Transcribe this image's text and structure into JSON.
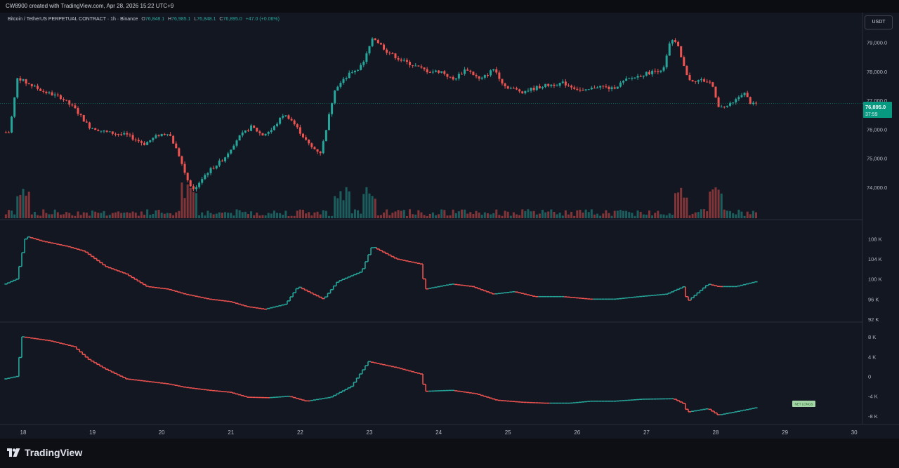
{
  "header": {
    "creator_line": "CW8900 created with TradingView.com, Apr 28, 2026 15:22 UTC+9"
  },
  "legend": {
    "symbol": "Bitcoin / TetherUS PERPETUAL CONTRACT · 1h · Binance",
    "o_label": "O",
    "o_value": "76,848.1",
    "h_label": "H",
    "h_value": "76,985.1",
    "l_label": "L",
    "l_value": "76,848.1",
    "c_label": "C",
    "c_value": "76,895.0",
    "change": "+47.0 (+0.06%)"
  },
  "currency_button": "USDT",
  "last_price": {
    "price": "76,895.0",
    "countdown": "37:59"
  },
  "oi_tag": "NET LONGS",
  "footer": {
    "brand": "TradingView"
  },
  "colors": {
    "up": "#26a69a",
    "down": "#ef5350",
    "background": "#131722",
    "accent": "#089981"
  },
  "chart_data": [
    {
      "type": "candlestick",
      "title": "Bitcoin / TetherUS PERPETUAL CONTRACT · 1h · Binance",
      "x_ticks": [
        "18",
        "19",
        "20",
        "21",
        "22",
        "23",
        "24",
        "25",
        "26",
        "27",
        "28",
        "29",
        "30"
      ],
      "y_ticks": [
        "79,000.0",
        "78,000.0",
        "77,000.0",
        "76,000.0",
        "75,000.0",
        "74,000.0"
      ],
      "ylim": [
        73200,
        79500
      ],
      "last": 76895.0,
      "closes_anchor": [
        [
          17.8,
          75900
        ],
        [
          17.92,
          77800
        ],
        [
          18.05,
          77600
        ],
        [
          18.3,
          77300
        ],
        [
          18.55,
          77100
        ],
        [
          18.75,
          76700
        ],
        [
          18.95,
          76100
        ],
        [
          19.2,
          75900
        ],
        [
          19.5,
          75800
        ],
        [
          19.75,
          75500
        ],
        [
          19.95,
          75800
        ],
        [
          20.1,
          75900
        ],
        [
          20.25,
          75100
        ],
        [
          20.35,
          74400
        ],
        [
          20.45,
          73900
        ],
        [
          20.65,
          74500
        ],
        [
          20.9,
          75000
        ],
        [
          21.1,
          75700
        ],
        [
          21.3,
          76100
        ],
        [
          21.45,
          75800
        ],
        [
          21.6,
          76000
        ],
        [
          21.75,
          76500
        ],
        [
          21.85,
          76400
        ],
        [
          22.0,
          75900
        ],
        [
          22.15,
          75400
        ],
        [
          22.3,
          75200
        ],
        [
          22.4,
          76300
        ],
        [
          22.5,
          77400
        ],
        [
          22.75,
          78000
        ],
        [
          22.9,
          78200
        ],
        [
          23.05,
          79200
        ],
        [
          23.25,
          78700
        ],
        [
          23.45,
          78400
        ],
        [
          23.65,
          78200
        ],
        [
          23.85,
          78000
        ],
        [
          24.05,
          78000
        ],
        [
          24.2,
          77700
        ],
        [
          24.4,
          78100
        ],
        [
          24.6,
          77700
        ],
        [
          24.8,
          78100
        ],
        [
          24.95,
          77500
        ],
        [
          25.2,
          77300
        ],
        [
          25.5,
          77500
        ],
        [
          25.8,
          77600
        ],
        [
          26.1,
          77300
        ],
        [
          26.3,
          77500
        ],
        [
          26.5,
          77400
        ],
        [
          26.7,
          77700
        ],
        [
          26.95,
          77900
        ],
        [
          27.1,
          78000
        ],
        [
          27.25,
          78100
        ],
        [
          27.35,
          79100
        ],
        [
          27.45,
          78900
        ],
        [
          27.6,
          77700
        ],
        [
          27.8,
          77700
        ],
        [
          27.95,
          77600
        ],
        [
          28.05,
          76700
        ],
        [
          28.25,
          76900
        ],
        [
          28.4,
          77300
        ],
        [
          28.52,
          76850
        ],
        [
          28.6,
          76895
        ]
      ],
      "volume": {
        "note": "volume histogram at bottom of price pane, spikes near 18.0, 22.6, 27.5, 28.0"
      }
    },
    {
      "type": "line",
      "title": "",
      "y_ticks": [
        "108 K",
        "104 K",
        "100 K",
        "96 K",
        "92 K"
      ],
      "ylim": [
        92000,
        110000
      ],
      "points": [
        [
          17.75,
          99000
        ],
        [
          17.92,
          100000
        ],
        [
          18.05,
          108500
        ],
        [
          18.3,
          107500
        ],
        [
          18.65,
          106500
        ],
        [
          18.9,
          105500
        ],
        [
          19.2,
          102500
        ],
        [
          19.5,
          101000
        ],
        [
          19.8,
          98500
        ],
        [
          20.1,
          98000
        ],
        [
          20.35,
          97000
        ],
        [
          20.7,
          96000
        ],
        [
          21.0,
          95500
        ],
        [
          21.25,
          94500
        ],
        [
          21.5,
          94000
        ],
        [
          21.8,
          95000
        ],
        [
          21.98,
          98500
        ],
        [
          22.2,
          97000
        ],
        [
          22.35,
          96000
        ],
        [
          22.55,
          99500
        ],
        [
          22.9,
          101500
        ],
        [
          23.05,
          106500
        ],
        [
          23.4,
          104000
        ],
        [
          23.75,
          103000
        ],
        [
          23.82,
          98000
        ],
        [
          24.2,
          99000
        ],
        [
          24.5,
          98500
        ],
        [
          24.8,
          97000
        ],
        [
          25.1,
          97500
        ],
        [
          25.4,
          96500
        ],
        [
          25.8,
          96500
        ],
        [
          26.2,
          96000
        ],
        [
          26.55,
          96000
        ],
        [
          26.9,
          96500
        ],
        [
          27.3,
          97000
        ],
        [
          27.55,
          98500
        ],
        [
          27.6,
          95500
        ],
        [
          27.9,
          99000
        ],
        [
          28.05,
          98500
        ],
        [
          28.3,
          98500
        ],
        [
          28.6,
          99500
        ]
      ]
    },
    {
      "type": "line",
      "title": "",
      "y_ticks": [
        "8 K",
        "4 K",
        "0",
        "-4 K",
        "-8 K"
      ],
      "ylim": [
        -9000,
        9000
      ],
      "points": [
        [
          17.75,
          -500
        ],
        [
          17.92,
          0
        ],
        [
          18.0,
          8000
        ],
        [
          18.4,
          7200
        ],
        [
          18.75,
          6000
        ],
        [
          18.95,
          3500
        ],
        [
          19.2,
          1500
        ],
        [
          19.5,
          -500
        ],
        [
          19.8,
          -1000
        ],
        [
          20.1,
          -1500
        ],
        [
          20.35,
          -2200
        ],
        [
          20.7,
          -2800
        ],
        [
          21.0,
          -3200
        ],
        [
          21.25,
          -4200
        ],
        [
          21.55,
          -4300
        ],
        [
          21.85,
          -4000
        ],
        [
          22.1,
          -5000
        ],
        [
          22.45,
          -4200
        ],
        [
          22.75,
          -2000
        ],
        [
          23.0,
          3000
        ],
        [
          23.4,
          1800
        ],
        [
          23.75,
          500
        ],
        [
          23.82,
          -3000
        ],
        [
          24.2,
          -2800
        ],
        [
          24.55,
          -3500
        ],
        [
          24.85,
          -4800
        ],
        [
          25.2,
          -5200
        ],
        [
          25.55,
          -5400
        ],
        [
          25.9,
          -5400
        ],
        [
          26.2,
          -5000
        ],
        [
          26.55,
          -5000
        ],
        [
          26.95,
          -4600
        ],
        [
          27.4,
          -4500
        ],
        [
          27.55,
          -5500
        ],
        [
          27.6,
          -7200
        ],
        [
          27.9,
          -6500
        ],
        [
          28.05,
          -7800
        ],
        [
          28.35,
          -7000
        ],
        [
          28.6,
          -6300
        ]
      ]
    }
  ]
}
